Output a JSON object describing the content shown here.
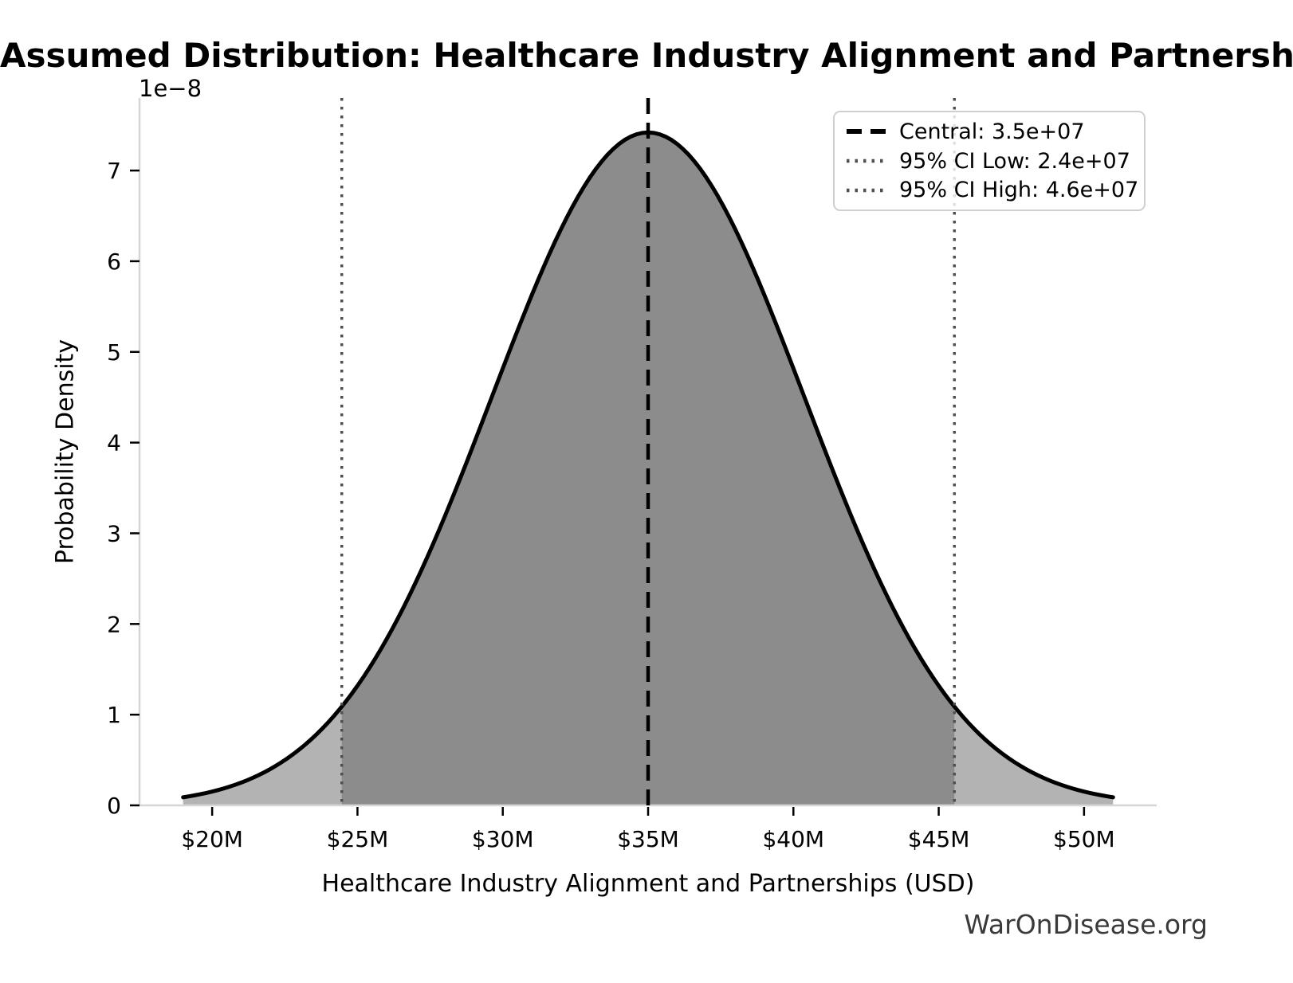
{
  "page": {
    "watermark": "WarOnDisease.org"
  },
  "chart_data": {
    "type": "area",
    "subtype": "normal-distribution-density",
    "title": "Assumed Distribution: Healthcare Industry Alignment and Partnerships",
    "xlabel": "Healthcare Industry Alignment and Partnerships (USD)",
    "ylabel": "Probability Density",
    "y_offset_label": "1e−8",
    "xlim": [
      17500000,
      52500000
    ],
    "ylim": [
      0,
      7.8e-08
    ],
    "grid": false,
    "legend_position": "upper right",
    "xticks": [
      {
        "value": 20000000,
        "label": "$20M"
      },
      {
        "value": 25000000,
        "label": "$25M"
      },
      {
        "value": 30000000,
        "label": "$30M"
      },
      {
        "value": 35000000,
        "label": "$35M"
      },
      {
        "value": 40000000,
        "label": "$40M"
      },
      {
        "value": 45000000,
        "label": "$45M"
      },
      {
        "value": 50000000,
        "label": "$50M"
      }
    ],
    "yticks": [
      {
        "value": 0,
        "label": "0"
      },
      {
        "value": 1e-08,
        "label": "1"
      },
      {
        "value": 2e-08,
        "label": "2"
      },
      {
        "value": 3e-08,
        "label": "3"
      },
      {
        "value": 4e-08,
        "label": "4"
      },
      {
        "value": 5e-08,
        "label": "5"
      },
      {
        "value": 6e-08,
        "label": "6"
      },
      {
        "value": 7e-08,
        "label": "7"
      }
    ],
    "distribution": {
      "mean": 35000000,
      "std": 5380000,
      "peak_density": 7.42e-08,
      "curve_x_min": 19000000,
      "curve_x_max": 51000000
    },
    "lines": [
      {
        "id": "central",
        "value": 35000000,
        "style": "dashed",
        "label": "Central: 3.5e+07"
      },
      {
        "id": "ci_low",
        "value": 24460000,
        "style": "dotted",
        "label": "95% CI Low: 2.4e+07"
      },
      {
        "id": "ci_high",
        "value": 45540000,
        "style": "dotted",
        "label": "95% CI High: 4.6e+07"
      }
    ],
    "colors": {
      "curve": "#000000",
      "fill_ci": "#8c8c8c",
      "fill_tails": "#b3b3b3",
      "dashed_line": "#000000",
      "dotted_line": "#4f4f4f",
      "spine": "#d6d6d6",
      "tick": "#000000",
      "watermark": "#3a3a3a"
    }
  }
}
